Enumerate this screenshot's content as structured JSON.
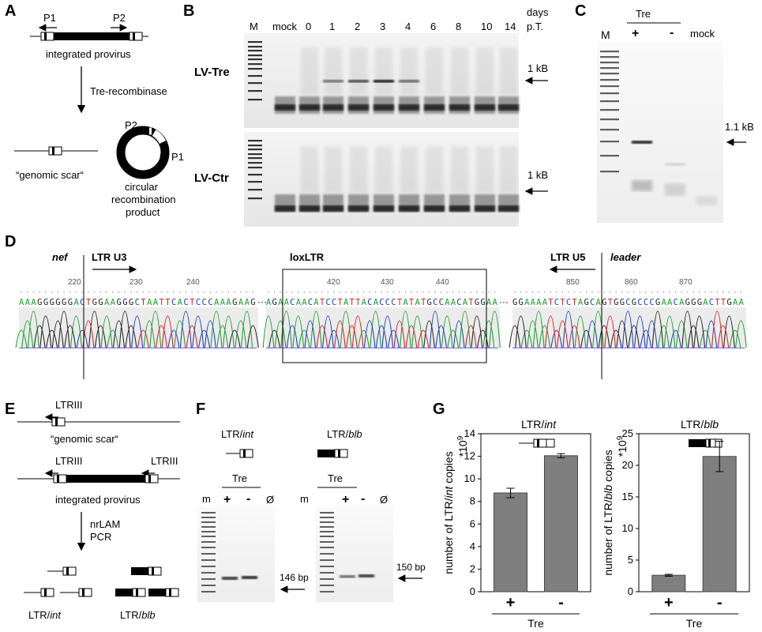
{
  "panels": {
    "A": "A",
    "B": "B",
    "C": "C",
    "D": "D",
    "E": "E",
    "F": "F",
    "G": "G"
  },
  "panelA": {
    "p1": "P1",
    "p2": "P2",
    "integrated": "integrated provirus",
    "enzyme": "Tre-recombinase",
    "scar": "“genomic scar“",
    "circ1": "circular",
    "circ2": "recombination",
    "circ3": "product",
    "cp2": "P2",
    "cp1": "P1"
  },
  "panelB": {
    "marker": "M",
    "mock": "mock",
    "days": [
      "0",
      "1",
      "2",
      "3",
      "4",
      "6",
      "8",
      "10",
      "14"
    ],
    "days_label1": "days",
    "days_label2": "p.T.",
    "row1": "LV-Tre",
    "row2": "LV-Ctr",
    "size1": "1 kB",
    "size2": "1 kB"
  },
  "panelC": {
    "tre": "Tre",
    "marker": "M",
    "plus": "+",
    "minus": "-",
    "mock": "mock",
    "size": "1.1 kB"
  },
  "panelD": {
    "nef": "nef",
    "ltr_u3": "LTR  U3",
    "loxltr": "loxLTR",
    "ltr_u5": "LTR  U5",
    "leader": "leader",
    "ticks1": [
      "220",
      "230",
      "240"
    ],
    "ticks2": [
      "420",
      "430",
      "440"
    ],
    "ticks3": [
      "850",
      "860",
      "870"
    ],
    "seq1": "AAAGGGGGGACTGGAAGGGCTAATTCACTCCCAAAGAAG",
    "seq2": "AGAACAACATCCTATTACACCCTATATGCCAACATGGAA",
    "seq3": "GGAAAATCTCTAGCAGTGGCGCCCGAACAGGGACTTGAA",
    "dots": "···"
  },
  "panelE": {
    "ltr_top": "LTRIII",
    "scar": "“genomic scar“",
    "ltr_l": "LTRIII",
    "ltr_r": "LTRIII",
    "integrated": "integrated provirus",
    "method1": "nrLAM",
    "method2": "PCR",
    "int_label": "LTR/",
    "int_italic": "int",
    "blb_label": "LTR/",
    "blb_italic": "blb"
  },
  "panelF": {
    "title1a": "LTR/",
    "title1b": "int",
    "title2a": "LTR/",
    "title2b": "blb",
    "tre": "Tre",
    "m": "m",
    "plus": "+",
    "minus": "-",
    "empty": "Ø",
    "size1": "146 bp",
    "size2": "150 bp"
  },
  "chart_data": [
    {
      "type": "bar",
      "title": "LTR/int",
      "categories": [
        "+",
        "-"
      ],
      "values": [
        8.75,
        12.05
      ],
      "errors": [
        0.42,
        0.18
      ],
      "ylim": [
        0,
        14
      ],
      "yticks": [
        "0",
        "2",
        "4",
        "6",
        "8",
        "10",
        "12",
        "14"
      ],
      "ylabel_a": "number of LTR/",
      "ylabel_b": "int",
      "ylabel_c": " copies",
      "ylabel_d": "*10",
      "ylabel_exp": "9",
      "xlabel": "Tre",
      "color": "#7f7f7f"
    },
    {
      "type": "bar",
      "title": "LTR/blb",
      "categories": [
        "+",
        "-"
      ],
      "values": [
        2.6,
        21.4
      ],
      "errors": [
        0.15,
        2.4
      ],
      "ylim": [
        0,
        25
      ],
      "yticks": [
        "0",
        "5",
        "10",
        "15",
        "20",
        "25"
      ],
      "ylabel_a": "number of LTR/",
      "ylabel_b": "blb",
      "ylabel_c": " copies",
      "ylabel_d": "*10",
      "ylabel_exp": "9",
      "xlabel": "Tre",
      "color": "#7f7f7f"
    }
  ]
}
